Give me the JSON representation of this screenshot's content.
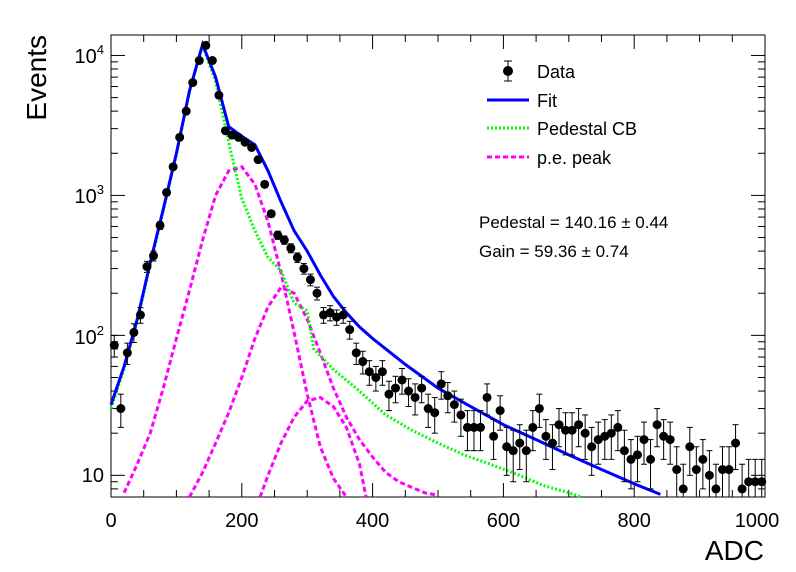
{
  "chart_data": {
    "type": "scatter",
    "title": "",
    "xlabel": "ADC",
    "ylabel": "Events",
    "xlim": [
      0,
      1000
    ],
    "ylim": [
      7,
      14000
    ],
    "ylog": true,
    "grid": false,
    "legend_position": "top-right",
    "x_ticks": [
      "0",
      "200",
      "400",
      "600",
      "800",
      "1000"
    ],
    "y_ticks": [
      "10",
      "10",
      "10",
      "10"
    ],
    "y_tick_exponents": [
      "",
      "2",
      "3",
      "4"
    ],
    "legend": [
      {
        "label": "Data",
        "style": "marker",
        "color": "#000000"
      },
      {
        "label": "Fit",
        "style": "solid",
        "color": "#0000ff"
      },
      {
        "label": "Pedestal CB",
        "style": "dotted",
        "color": "#00ff00"
      },
      {
        "label": "p.e. peak",
        "style": "dashed",
        "color": "#ff00ff"
      }
    ],
    "annotations": [
      "Pedestal = 140.16 ± 0.44",
      "Gain = 59.36 ± 0.74"
    ],
    "series": [
      {
        "name": "Data",
        "x": [
          5,
          15,
          25,
          35,
          45,
          55,
          65,
          75,
          85,
          95,
          105,
          115,
          125,
          135,
          145,
          155,
          165,
          175,
          185,
          195,
          205,
          215,
          225,
          235,
          245,
          255,
          265,
          275,
          285,
          295,
          305,
          315,
          325,
          335,
          345,
          355,
          365,
          375,
          385,
          395,
          405,
          415,
          425,
          435,
          445,
          455,
          465,
          475,
          485,
          495,
          505,
          515,
          525,
          535,
          545,
          555,
          565,
          575,
          585,
          595,
          605,
          615,
          625,
          635,
          645,
          655,
          665,
          675,
          685,
          695,
          705,
          715,
          725,
          735,
          745,
          755,
          765,
          775,
          785,
          795,
          805,
          815,
          825,
          835,
          845,
          855,
          865,
          875,
          885,
          895,
          905,
          915,
          925,
          935,
          945,
          955,
          965,
          975,
          985,
          995
        ],
        "y": [
          85,
          30,
          75,
          105,
          140,
          310,
          370,
          610,
          1050,
          1600,
          2600,
          4000,
          6400,
          9200,
          11800,
          9200,
          5200,
          2900,
          2700,
          2600,
          2400,
          2200,
          1800,
          1200,
          740,
          520,
          480,
          420,
          360,
          300,
          250,
          200,
          140,
          145,
          135,
          140,
          110,
          75,
          65,
          55,
          50,
          55,
          38,
          42,
          48,
          40,
          36,
          42,
          30,
          28,
          45,
          37,
          32,
          27,
          22,
          22,
          22,
          36,
          19,
          29,
          16,
          15,
          17,
          15,
          22,
          30,
          19,
          17,
          23,
          21,
          21,
          23,
          20,
          16,
          18,
          19,
          20,
          22,
          15,
          13,
          14,
          18,
          13,
          23,
          19,
          18,
          11,
          8,
          16,
          11,
          13,
          10,
          8,
          11,
          11,
          17,
          8,
          9,
          9,
          9
        ],
        "yerr": [
          15,
          8,
          13,
          16,
          18,
          28,
          30,
          38,
          50,
          62,
          78,
          95,
          120,
          145,
          160,
          145,
          110,
          82,
          80,
          78,
          75,
          72,
          65,
          52,
          40,
          35,
          33,
          31,
          28,
          26,
          24,
          21,
          18,
          18,
          17,
          18,
          16,
          13,
          12,
          11,
          10,
          11,
          9,
          9,
          10,
          9,
          9,
          9,
          8,
          8,
          10,
          9,
          8,
          8,
          7,
          7,
          7,
          9,
          6,
          8,
          6,
          6,
          6,
          6,
          7,
          8,
          6,
          6,
          7,
          7,
          7,
          7,
          7,
          6,
          6,
          6,
          7,
          7,
          6,
          5,
          5,
          6,
          5,
          7,
          6,
          6,
          5,
          4,
          6,
          5,
          5,
          5,
          4,
          5,
          5,
          6,
          4,
          4,
          4,
          4
        ]
      },
      {
        "name": "Fit",
        "x": [
          0,
          20,
          40,
          60,
          80,
          100,
          120,
          140,
          160,
          180,
          200,
          220,
          240,
          260,
          280,
          300,
          320,
          340,
          360,
          380,
          400,
          450,
          500,
          550,
          600,
          650,
          700,
          750,
          800,
          840
        ],
        "y": [
          32,
          60,
          130,
          330,
          800,
          2000,
          5600,
          12000,
          7000,
          3100,
          2650,
          2300,
          1500,
          900,
          560,
          400,
          270,
          190,
          145,
          115,
          95,
          62,
          42,
          31,
          23,
          18,
          14,
          11,
          8.7,
          7.3
        ]
      },
      {
        "name": "Pedestal CB",
        "x": [
          0,
          20,
          40,
          60,
          80,
          100,
          120,
          140,
          160,
          180,
          200,
          220,
          240,
          260,
          280,
          300,
          310,
          340,
          380,
          420,
          460,
          500,
          540,
          580,
          620,
          660,
          700,
          720
        ],
        "y": [
          30,
          58,
          125,
          320,
          780,
          1950,
          5500,
          11800,
          6500,
          2400,
          950,
          560,
          360,
          290,
          170,
          150,
          80,
          57,
          40,
          27,
          21,
          17,
          14,
          12,
          10.2,
          8.5,
          7.5,
          7
        ]
      },
      {
        "name": "p.e. peak 1",
        "x": [
          20,
          40,
          60,
          80,
          100,
          120,
          140,
          160,
          180,
          200,
          220,
          240,
          260,
          280,
          300,
          320,
          340,
          360
        ],
        "y": [
          7.5,
          12,
          20,
          42,
          95,
          210,
          480,
          1000,
          1500,
          1600,
          1200,
          650,
          280,
          105,
          38,
          16,
          9.5,
          7
        ]
      },
      {
        "name": "p.e. peak 2",
        "x": [
          120,
          140,
          160,
          180,
          200,
          220,
          240,
          260,
          280,
          300,
          320,
          340,
          360,
          380,
          400,
          420,
          440,
          460,
          480,
          500
        ],
        "y": [
          7,
          10.5,
          17,
          28,
          50,
          95,
          160,
          220,
          200,
          130,
          75,
          42,
          26,
          18,
          13.5,
          10.5,
          9,
          8.2,
          7.5,
          7.2
        ]
      },
      {
        "name": "p.e. peak 3",
        "x": [
          228,
          240,
          260,
          280,
          300,
          320,
          340,
          360,
          380,
          390
        ],
        "y": [
          7,
          10,
          17,
          26,
          34,
          36,
          31,
          22,
          12,
          7
        ]
      }
    ]
  }
}
